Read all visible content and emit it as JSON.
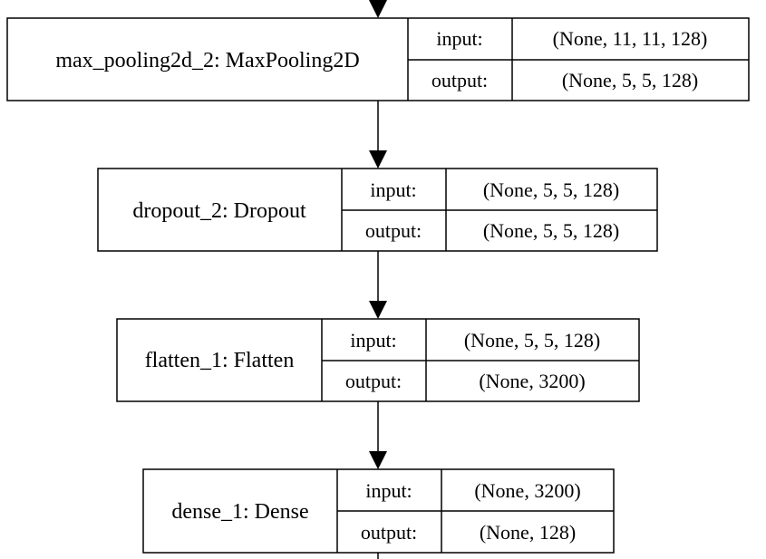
{
  "layers": [
    {
      "name": "max_pooling2d_2: MaxPooling2D",
      "input_label": "input:",
      "output_label": "output:",
      "input_shape": "(None, 11, 11, 128)",
      "output_shape": "(None, 5, 5, 128)"
    },
    {
      "name": "dropout_2: Dropout",
      "input_label": "input:",
      "output_label": "output:",
      "input_shape": "(None, 5, 5, 128)",
      "output_shape": "(None, 5, 5, 128)"
    },
    {
      "name": "flatten_1: Flatten",
      "input_label": "input:",
      "output_label": "output:",
      "input_shape": "(None, 5, 5, 128)",
      "output_shape": "(None, 3200)"
    },
    {
      "name": "dense_1: Dense",
      "input_label": "input:",
      "output_label": "output:",
      "input_shape": "(None, 3200)",
      "output_shape": "(None, 128)"
    }
  ]
}
